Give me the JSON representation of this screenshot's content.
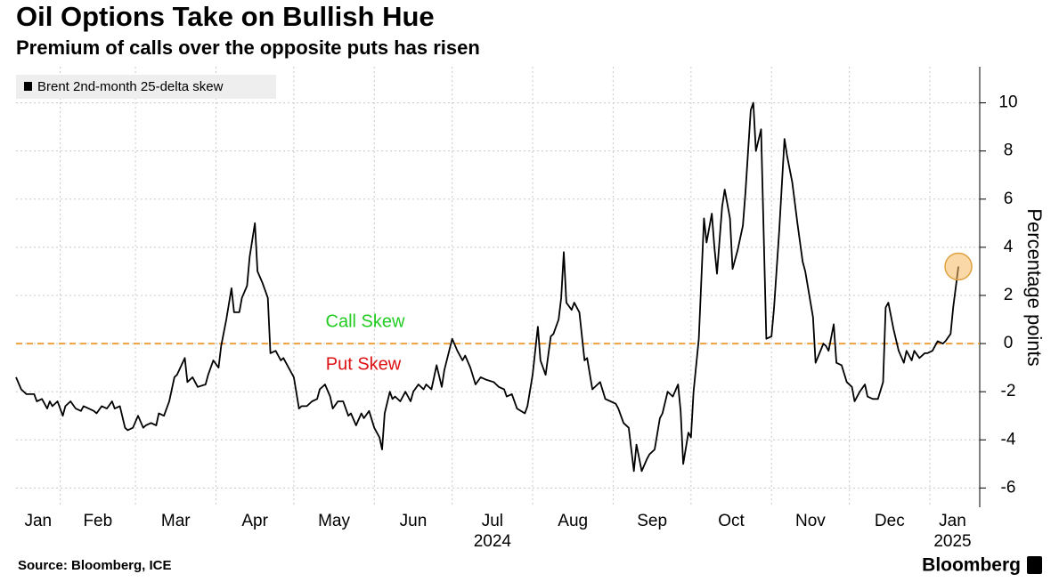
{
  "chart_data": {
    "type": "line",
    "title": "Oil Options Take on Bullish Hue",
    "subtitle": "Premium of calls over the opposite puts has risen",
    "y_label": "Percentage points",
    "source": "Source: Bloomberg, ICE",
    "brand": "Bloomberg",
    "year_labels": [
      "2024",
      "2025"
    ],
    "annotations": [
      {
        "text": "Call Skew",
        "color": "#22cc22"
      },
      {
        "text": "Put Skew",
        "color": "#dd1111"
      }
    ],
    "reference_line": {
      "value": 0,
      "color": "#f0a040"
    },
    "legend": "top-left",
    "grid": true,
    "xlim": [
      14,
      383.5
    ],
    "xticks": [
      {
        "value": 0,
        "label": "Jan"
      },
      {
        "value": 31,
        "label": "Feb"
      },
      {
        "value": 60,
        "label": "Mar"
      },
      {
        "value": 91,
        "label": "Apr"
      },
      {
        "value": 121,
        "label": "May"
      },
      {
        "value": 152,
        "label": "Jun"
      },
      {
        "value": 182,
        "label": "Jul"
      },
      {
        "value": 213,
        "label": "Aug"
      },
      {
        "value": 244,
        "label": "Sep"
      },
      {
        "value": 274,
        "label": "Oct"
      },
      {
        "value": 305,
        "label": "Nov"
      },
      {
        "value": 335,
        "label": "Dec"
      },
      {
        "value": 366,
        "label": "Jan"
      }
    ],
    "ylim": [
      -6.8,
      11.5
    ],
    "yticks": [
      -6,
      -4,
      -2,
      0,
      2,
      4,
      6,
      8,
      10
    ],
    "x": [
      14,
      16,
      18,
      21,
      22,
      24,
      26,
      27,
      28,
      30,
      32,
      33,
      35,
      37,
      39,
      40,
      42,
      44,
      45,
      47,
      49,
      51,
      52,
      54,
      56,
      57,
      59,
      61,
      63,
      64,
      66,
      68,
      69,
      71,
      73,
      75,
      76,
      79,
      80,
      82,
      84,
      87,
      88,
      90,
      92,
      93,
      95,
      97,
      98,
      100,
      101,
      103,
      104,
      106,
      107,
      109,
      111,
      112,
      114,
      116,
      117,
      119,
      121,
      123,
      124,
      126,
      128,
      130,
      131,
      133,
      135,
      136,
      138,
      140,
      142,
      143,
      145,
      147,
      148,
      150,
      152,
      154,
      155,
      156,
      158,
      159,
      160,
      162,
      164,
      166,
      167,
      169,
      171,
      172,
      174,
      176,
      178,
      179,
      182,
      184,
      186,
      187,
      189,
      191,
      193,
      195,
      198,
      200,
      202,
      203,
      205,
      207,
      210,
      211,
      213,
      215,
      216,
      218,
      220,
      221,
      223,
      224,
      225,
      226,
      228,
      229,
      231,
      233,
      234,
      236,
      238,
      239,
      241,
      243,
      245,
      246,
      248,
      250,
      251,
      252,
      253,
      255,
      257,
      258,
      260,
      262,
      263,
      265,
      267,
      269,
      270,
      271,
      273,
      274,
      275,
      277,
      279,
      280,
      282,
      283,
      284,
      286,
      287,
      289,
      290,
      292,
      294,
      295,
      297,
      298,
      299,
      301,
      303,
      305,
      306,
      308,
      310,
      311,
      313,
      315,
      317,
      318,
      321,
      322,
      325,
      326,
      327,
      329,
      330,
      332,
      334,
      336,
      337,
      339,
      341,
      342,
      344,
      346,
      348,
      349,
      350,
      352,
      354,
      356,
      357,
      359,
      360,
      362,
      364,
      365,
      367,
      369,
      371,
      372,
      374,
      375,
      377
    ],
    "series": [
      {
        "name": "Brent 2nd-month 25-delta skew",
        "color": "#000000",
        "values": [
          -1.4,
          -1.9,
          -2.1,
          -2.1,
          -2.4,
          -2.3,
          -2.7,
          -2.4,
          -2.6,
          -2.4,
          -3.0,
          -2.6,
          -2.4,
          -2.7,
          -2.8,
          -2.6,
          -2.7,
          -2.8,
          -2.9,
          -2.6,
          -2.7,
          -2.4,
          -2.7,
          -2.6,
          -3.5,
          -3.6,
          -3.5,
          -3.0,
          -3.5,
          -3.4,
          -3.3,
          -3.4,
          -2.9,
          -3.0,
          -2.4,
          -1.4,
          -1.3,
          -0.6,
          -1.6,
          -1.4,
          -1.8,
          -1.7,
          -1.3,
          -0.7,
          -1.0,
          -0.1,
          1.0,
          2.3,
          1.3,
          1.3,
          1.9,
          2.4,
          3.6,
          5.0,
          3.0,
          2.5,
          1.9,
          -0.4,
          -0.3,
          -0.7,
          -0.6,
          -1.0,
          -1.4,
          -2.7,
          -2.6,
          -2.6,
          -2.4,
          -2.3,
          -1.9,
          -1.7,
          -2.2,
          -2.7,
          -2.4,
          -2.4,
          -3.0,
          -2.9,
          -3.4,
          -2.9,
          -3.1,
          -2.8,
          -3.5,
          -3.9,
          -4.4,
          -2.9,
          -2.0,
          -2.3,
          -2.2,
          -2.4,
          -2.0,
          -2.4,
          -2.0,
          -1.7,
          -1.9,
          -1.7,
          -1.9,
          -0.9,
          -1.8,
          -1.1,
          0.2,
          -0.3,
          -0.7,
          -0.5,
          -1.0,
          -1.7,
          -1.4,
          -1.5,
          -1.6,
          -1.8,
          -1.9,
          -2.2,
          -2.1,
          -2.7,
          -2.9,
          -2.6,
          -1.3,
          0.7,
          -0.7,
          -1.3,
          0.3,
          0.4,
          1.0,
          1.9,
          3.8,
          1.7,
          1.4,
          1.7,
          1.3,
          -0.7,
          -0.6,
          -1.9,
          -1.7,
          -1.6,
          -2.3,
          -2.4,
          -2.5,
          -2.7,
          -3.3,
          -3.5,
          -4.4,
          -5.3,
          -4.2,
          -5.3,
          -4.8,
          -4.6,
          -4.4,
          -3.1,
          -2.9,
          -2.0,
          -2.2,
          -1.7,
          -2.8,
          -5.0,
          -3.7,
          -3.9,
          -2.0,
          0.2,
          5.2,
          4.2,
          5.4,
          4.0,
          2.9,
          5.7,
          6.4,
          5.2,
          3.1,
          3.9,
          4.9,
          6.3,
          9.7,
          10.0,
          8.0,
          8.9,
          0.2,
          0.3,
          1.5,
          4.7,
          8.5,
          7.8,
          6.7,
          5.0,
          3.4,
          3.0,
          1.1,
          -0.8,
          0.0,
          -0.1,
          -0.3,
          0.8,
          -0.8,
          -0.9,
          -1.6,
          -1.8,
          -2.4,
          -2.0,
          -1.7,
          -2.2,
          -2.3,
          -2.3,
          -1.6,
          1.5,
          1.7,
          0.6,
          -0.3,
          -0.8,
          -0.3,
          -0.7,
          -0.3,
          -0.6,
          -0.4,
          -0.4,
          -0.3,
          0.1,
          0.0,
          0.1,
          0.4,
          1.5,
          3.2
        ]
      }
    ]
  }
}
